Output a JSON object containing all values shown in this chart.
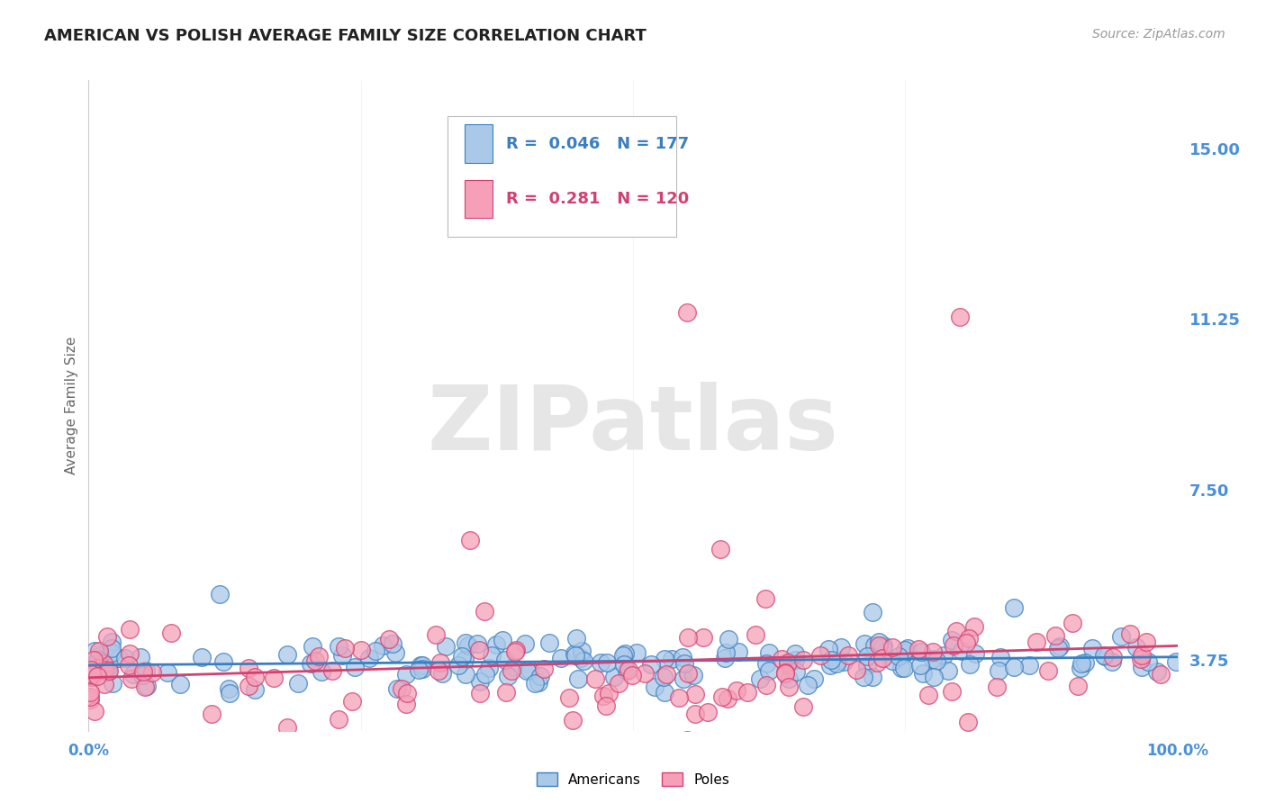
{
  "title": "AMERICAN VS POLISH AVERAGE FAMILY SIZE CORRELATION CHART",
  "source": "Source: ZipAtlas.com",
  "ylabel": "Average Family Size",
  "xlim": [
    0.0,
    1.0
  ],
  "ylim": [
    2.2,
    16.5
  ],
  "yticks": [
    3.75,
    7.5,
    11.25,
    15.0
  ],
  "color_american": "#aac8e8",
  "color_polish": "#f5a0b8",
  "color_trend_american": "#3a7fc1",
  "color_trend_polish": "#d44070",
  "color_tick": "#4a90d9",
  "R_american": 0.046,
  "N_american": 177,
  "R_polish": 0.281,
  "N_polish": 120,
  "watermark": "ZIPatlas",
  "background_color": "#ffffff",
  "grid_color": "#d8d8d8",
  "title_fontsize": 13,
  "source_fontsize": 10,
  "ylabel_fontsize": 11,
  "ytick_fontsize": 13,
  "xtick_fontsize": 12,
  "legend_fontsize": 13
}
